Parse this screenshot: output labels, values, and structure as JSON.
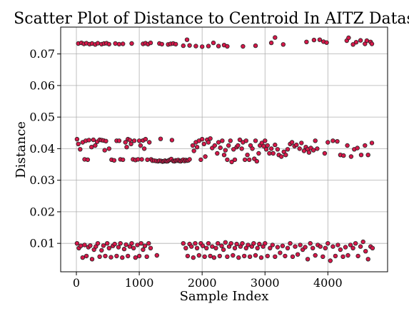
{
  "chart_data": {
    "type": "scatter",
    "title": "Scatter Plot of Distance to Centroid In AITZ Datas",
    "xlabel": "Sample Index",
    "ylabel": "Distance",
    "xlim": [
      -250,
      4950
    ],
    "ylim": [
      0.001,
      0.0785
    ],
    "xticks": [
      0,
      1000,
      2000,
      3000,
      4000
    ],
    "yticks": [
      0.01,
      0.02,
      0.03,
      0.04,
      0.05,
      0.06,
      0.07
    ],
    "xtick_labels": [
      "0",
      "1000",
      "2000",
      "3000",
      "4000"
    ],
    "ytick_labels": [
      "0.01",
      "0.02",
      "0.03",
      "0.04",
      "0.05",
      "0.06",
      "0.07"
    ],
    "grid": true,
    "marker_fill": "#d6184a",
    "marker_edge": "#222222",
    "points": [
      [
        30,
        0.0733
      ],
      [
        80,
        0.0735
      ],
      [
        120,
        0.0732
      ],
      [
        160,
        0.0734
      ],
      [
        210,
        0.0731
      ],
      [
        250,
        0.0733
      ],
      [
        300,
        0.073
      ],
      [
        340,
        0.0734
      ],
      [
        400,
        0.0731
      ],
      [
        440,
        0.0733
      ],
      [
        480,
        0.0734
      ],
      [
        520,
        0.0731
      ],
      [
        620,
        0.0733
      ],
      [
        680,
        0.0731
      ],
      [
        740,
        0.0732
      ],
      [
        880,
        0.0733
      ],
      [
        1060,
        0.0732
      ],
      [
        1100,
        0.0734
      ],
      [
        1140,
        0.0731
      ],
      [
        1180,
        0.0735
      ],
      [
        1320,
        0.0733
      ],
      [
        1360,
        0.0731
      ],
      [
        1460,
        0.073
      ],
      [
        1500,
        0.0732
      ],
      [
        1540,
        0.0733
      ],
      [
        1580,
        0.0731
      ],
      [
        1700,
        0.0726
      ],
      [
        1760,
        0.0745
      ],
      [
        1800,
        0.0727
      ],
      [
        1900,
        0.0725
      ],
      [
        2000,
        0.0723
      ],
      [
        2100,
        0.0725
      ],
      [
        2180,
        0.0735
      ],
      [
        2260,
        0.0725
      ],
      [
        2350,
        0.0728
      ],
      [
        2400,
        0.0724
      ],
      [
        2650,
        0.0724
      ],
      [
        2850,
        0.0726
      ],
      [
        3100,
        0.0735
      ],
      [
        3160,
        0.0752
      ],
      [
        3290,
        0.073
      ],
      [
        3660,
        0.0738
      ],
      [
        3780,
        0.0744
      ],
      [
        3870,
        0.0745
      ],
      [
        3930,
        0.0739
      ],
      [
        3980,
        0.0736
      ],
      [
        4300,
        0.0742
      ],
      [
        4330,
        0.0751
      ],
      [
        4400,
        0.073
      ],
      [
        4450,
        0.0737
      ],
      [
        4520,
        0.0743
      ],
      [
        4590,
        0.0732
      ],
      [
        4620,
        0.0742
      ],
      [
        4680,
        0.0738
      ],
      [
        4700,
        0.0732
      ],
      [
        10,
        0.043
      ],
      [
        30,
        0.0415
      ],
      [
        60,
        0.0398
      ],
      [
        100,
        0.042
      ],
      [
        130,
        0.0366
      ],
      [
        150,
        0.0425
      ],
      [
        180,
        0.0365
      ],
      [
        200,
        0.0427
      ],
      [
        240,
        0.0405
      ],
      [
        270,
        0.0428
      ],
      [
        300,
        0.041
      ],
      [
        330,
        0.0422
      ],
      [
        370,
        0.0428
      ],
      [
        400,
        0.0427
      ],
      [
        430,
        0.0426
      ],
      [
        450,
        0.0395
      ],
      [
        470,
        0.0424
      ],
      [
        520,
        0.04
      ],
      [
        560,
        0.0365
      ],
      [
        600,
        0.0363
      ],
      [
        640,
        0.0425
      ],
      [
        680,
        0.0425
      ],
      [
        700,
        0.0366
      ],
      [
        740,
        0.0365
      ],
      [
        780,
        0.042
      ],
      [
        800,
        0.0405
      ],
      [
        820,
        0.043
      ],
      [
        850,
        0.0427
      ],
      [
        870,
        0.0415
      ],
      [
        900,
        0.0366
      ],
      [
        920,
        0.0425
      ],
      [
        940,
        0.0364
      ],
      [
        980,
        0.0366
      ],
      [
        1000,
        0.0425
      ],
      [
        1020,
        0.041
      ],
      [
        1040,
        0.0366
      ],
      [
        1060,
        0.0426
      ],
      [
        1080,
        0.04
      ],
      [
        1100,
        0.043
      ],
      [
        1130,
        0.0365
      ],
      [
        1160,
        0.042
      ],
      [
        1190,
        0.0366
      ],
      [
        1210,
        0.0362
      ],
      [
        1240,
        0.0362
      ],
      [
        1270,
        0.0361
      ],
      [
        1300,
        0.036
      ],
      [
        1320,
        0.0362
      ],
      [
        1340,
        0.0431
      ],
      [
        1350,
        0.0361
      ],
      [
        1370,
        0.0359
      ],
      [
        1390,
        0.036
      ],
      [
        1410,
        0.0362
      ],
      [
        1430,
        0.036
      ],
      [
        1450,
        0.036
      ],
      [
        1470,
        0.0363
      ],
      [
        1490,
        0.0365
      ],
      [
        1510,
        0.0367
      ],
      [
        1520,
        0.0427
      ],
      [
        1540,
        0.0361
      ],
      [
        1560,
        0.036
      ],
      [
        1580,
        0.0363
      ],
      [
        1600,
        0.0362
      ],
      [
        1620,
        0.0364
      ],
      [
        1640,
        0.0361
      ],
      [
        1660,
        0.036
      ],
      [
        1680,
        0.0363
      ],
      [
        1700,
        0.0365
      ],
      [
        1720,
        0.0361
      ],
      [
        1740,
        0.0364
      ],
      [
        1760,
        0.0362
      ],
      [
        1780,
        0.0363
      ],
      [
        1800,
        0.0366
      ],
      [
        1850,
        0.041
      ],
      [
        1870,
        0.0393
      ],
      [
        1900,
        0.042
      ],
      [
        1920,
        0.0405
      ],
      [
        1950,
        0.0425
      ],
      [
        1980,
        0.0365
      ],
      [
        2000,
        0.043
      ],
      [
        2030,
        0.0415
      ],
      [
        2050,
        0.0375
      ],
      [
        2080,
        0.0428
      ],
      [
        2100,
        0.042
      ],
      [
        2130,
        0.0432
      ],
      [
        2160,
        0.0402
      ],
      [
        2200,
        0.041
      ],
      [
        2240,
        0.0385
      ],
      [
        2260,
        0.042
      ],
      [
        2290,
        0.0403
      ],
      [
        2320,
        0.0425
      ],
      [
        2350,
        0.038
      ],
      [
        2370,
        0.0395
      ],
      [
        2400,
        0.0365
      ],
      [
        2420,
        0.041
      ],
      [
        2450,
        0.0425
      ],
      [
        2470,
        0.0358
      ],
      [
        2500,
        0.0398
      ],
      [
        2520,
        0.0365
      ],
      [
        2550,
        0.0405
      ],
      [
        2570,
        0.041
      ],
      [
        2600,
        0.0428
      ],
      [
        2630,
        0.04
      ],
      [
        2650,
        0.042
      ],
      [
        2680,
        0.0365
      ],
      [
        2700,
        0.0425
      ],
      [
        2720,
        0.038
      ],
      [
        2750,
        0.0365
      ],
      [
        2770,
        0.041
      ],
      [
        2800,
        0.04
      ],
      [
        2830,
        0.0368
      ],
      [
        2850,
        0.0425
      ],
      [
        2870,
        0.036
      ],
      [
        2900,
        0.0385
      ],
      [
        2920,
        0.041
      ],
      [
        2950,
        0.0418
      ],
      [
        2980,
        0.0408
      ],
      [
        3000,
        0.0425
      ],
      [
        3020,
        0.0398
      ],
      [
        3040,
        0.041
      ],
      [
        3070,
        0.0385
      ],
      [
        3100,
        0.04
      ],
      [
        3130,
        0.0385
      ],
      [
        3160,
        0.0412
      ],
      [
        3200,
        0.0398
      ],
      [
        3220,
        0.038
      ],
      [
        3260,
        0.0375
      ],
      [
        3300,
        0.039
      ],
      [
        3330,
        0.038
      ],
      [
        3360,
        0.0398
      ],
      [
        3400,
        0.0415
      ],
      [
        3430,
        0.042
      ],
      [
        3470,
        0.0408
      ],
      [
        3500,
        0.0412
      ],
      [
        3550,
        0.04
      ],
      [
        3580,
        0.0418
      ],
      [
        3620,
        0.0393
      ],
      [
        3650,
        0.0405
      ],
      [
        3680,
        0.0398
      ],
      [
        3700,
        0.0388
      ],
      [
        3730,
        0.0402
      ],
      [
        3770,
        0.0395
      ],
      [
        3800,
        0.0425
      ],
      [
        3830,
        0.04
      ],
      [
        3950,
        0.0385
      ],
      [
        4000,
        0.042
      ],
      [
        4080,
        0.0425
      ],
      [
        4150,
        0.0423
      ],
      [
        4200,
        0.038
      ],
      [
        4250,
        0.0378
      ],
      [
        4310,
        0.041
      ],
      [
        4370,
        0.0375
      ],
      [
        4420,
        0.0398
      ],
      [
        4470,
        0.0402
      ],
      [
        4530,
        0.038
      ],
      [
        4590,
        0.041
      ],
      [
        4640,
        0.038
      ],
      [
        4700,
        0.0418
      ],
      [
        10,
        0.01
      ],
      [
        40,
        0.0085
      ],
      [
        70,
        0.0092
      ],
      [
        100,
        0.0055
      ],
      [
        130,
        0.0095
      ],
      [
        160,
        0.006
      ],
      [
        190,
        0.0088
      ],
      [
        220,
        0.0093
      ],
      [
        250,
        0.005
      ],
      [
        280,
        0.008
      ],
      [
        310,
        0.009
      ],
      [
        340,
        0.01
      ],
      [
        370,
        0.0058
      ],
      [
        400,
        0.0078
      ],
      [
        430,
        0.0093
      ],
      [
        460,
        0.006
      ],
      [
        490,
        0.01
      ],
      [
        520,
        0.0085
      ],
      [
        550,
        0.0056
      ],
      [
        580,
        0.0092
      ],
      [
        610,
        0.0098
      ],
      [
        640,
        0.006
      ],
      [
        670,
        0.0088
      ],
      [
        700,
        0.01
      ],
      [
        730,
        0.0055
      ],
      [
        760,
        0.0082
      ],
      [
        790,
        0.0096
      ],
      [
        820,
        0.006
      ],
      [
        850,
        0.009
      ],
      [
        880,
        0.01
      ],
      [
        910,
        0.0085
      ],
      [
        940,
        0.0055
      ],
      [
        970,
        0.0095
      ],
      [
        1000,
        0.006
      ],
      [
        1030,
        0.01
      ],
      [
        1060,
        0.008
      ],
      [
        1090,
        0.0092
      ],
      [
        1120,
        0.0058
      ],
      [
        1150,
        0.01
      ],
      [
        1180,
        0.0085
      ],
      [
        1280,
        0.0062
      ],
      [
        1700,
        0.01
      ],
      [
        1740,
        0.0085
      ],
      [
        1770,
        0.006
      ],
      [
        1800,
        0.0098
      ],
      [
        1830,
        0.009
      ],
      [
        1860,
        0.0055
      ],
      [
        1890,
        0.01
      ],
      [
        1920,
        0.0085
      ],
      [
        1950,
        0.0062
      ],
      [
        1980,
        0.01
      ],
      [
        2010,
        0.0092
      ],
      [
        2040,
        0.0058
      ],
      [
        2070,
        0.0085
      ],
      [
        2100,
        0.01
      ],
      [
        2130,
        0.006
      ],
      [
        2160,
        0.009
      ],
      [
        2190,
        0.0055
      ],
      [
        2220,
        0.0085
      ],
      [
        2250,
        0.01
      ],
      [
        2280,
        0.006
      ],
      [
        2310,
        0.0092
      ],
      [
        2340,
        0.008
      ],
      [
        2370,
        0.0103
      ],
      [
        2400,
        0.0058
      ],
      [
        2430,
        0.009
      ],
      [
        2460,
        0.01
      ],
      [
        2490,
        0.0062
      ],
      [
        2520,
        0.0085
      ],
      [
        2550,
        0.0098
      ],
      [
        2580,
        0.0055
      ],
      [
        2610,
        0.009
      ],
      [
        2640,
        0.01
      ],
      [
        2670,
        0.006
      ],
      [
        2700,
        0.0085
      ],
      [
        2730,
        0.0095
      ],
      [
        2760,
        0.0058
      ],
      [
        2790,
        0.009
      ],
      [
        2820,
        0.01
      ],
      [
        2850,
        0.0062
      ],
      [
        2880,
        0.0085
      ],
      [
        2910,
        0.0098
      ],
      [
        2940,
        0.0055
      ],
      [
        2970,
        0.009
      ],
      [
        3000,
        0.01
      ],
      [
        3040,
        0.006
      ],
      [
        3080,
        0.0085
      ],
      [
        3120,
        0.0095
      ],
      [
        3160,
        0.0058
      ],
      [
        3200,
        0.0088
      ],
      [
        3240,
        0.007
      ],
      [
        3280,
        0.0092
      ],
      [
        3320,
        0.006
      ],
      [
        3360,
        0.0085
      ],
      [
        3400,
        0.01
      ],
      [
        3440,
        0.0058
      ],
      [
        3480,
        0.009
      ],
      [
        3520,
        0.0065
      ],
      [
        3560,
        0.0095
      ],
      [
        3600,
        0.008
      ],
      [
        3640,
        0.0088
      ],
      [
        3680,
        0.005
      ],
      [
        3720,
        0.01
      ],
      [
        3760,
        0.0085
      ],
      [
        3800,
        0.0062
      ],
      [
        3840,
        0.0095
      ],
      [
        3880,
        0.009
      ],
      [
        3920,
        0.0058
      ],
      [
        3960,
        0.0085
      ],
      [
        4000,
        0.01
      ],
      [
        4040,
        0.0045
      ],
      [
        4080,
        0.009
      ],
      [
        4120,
        0.006
      ],
      [
        4160,
        0.0095
      ],
      [
        4200,
        0.008
      ],
      [
        4240,
        0.0058
      ],
      [
        4280,
        0.0088
      ],
      [
        4320,
        0.0062
      ],
      [
        4360,
        0.0095
      ],
      [
        4400,
        0.0085
      ],
      [
        4440,
        0.01
      ],
      [
        4480,
        0.006
      ],
      [
        4520,
        0.009
      ],
      [
        4560,
        0.0105
      ],
      [
        4600,
        0.0075
      ],
      [
        4640,
        0.005
      ],
      [
        4680,
        0.009
      ],
      [
        4710,
        0.0085
      ]
    ]
  }
}
